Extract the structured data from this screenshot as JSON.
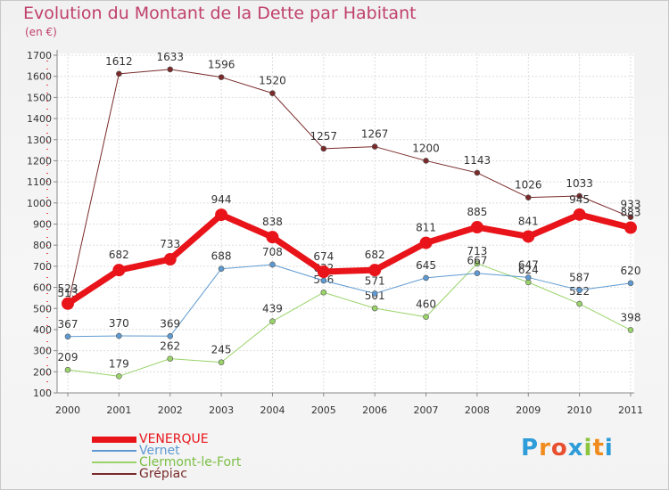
{
  "title": "Evolution du Montant de la Dette par Habitant",
  "unit": "(en €)",
  "logo": {
    "text": "Proxiti",
    "colors": [
      "#2e9cd8",
      "#f08c1e",
      "#e84f2e",
      "#2e9cd8",
      "#8cc63f",
      "#f08c1e",
      "#2e9cd8"
    ]
  },
  "chart_data": {
    "type": "line",
    "categories": [
      "2000",
      "2001",
      "2002",
      "2003",
      "2004",
      "2005",
      "2006",
      "2007",
      "2008",
      "2009",
      "2010",
      "2011"
    ],
    "yticks": [
      "100",
      "200",
      "300",
      "400",
      "500",
      "600",
      "700",
      "800",
      "900",
      "1000",
      "1100",
      "1200",
      "1300",
      "1400",
      "1500",
      "1600",
      "1700"
    ],
    "ylim": [
      100,
      1700
    ],
    "grid": true,
    "legend_position": "bottom-left",
    "series": [
      {
        "name": "Grépiac",
        "color": "#7a2a2a",
        "width": 1,
        "marker": 3,
        "values": [
          513,
          1612,
          1633,
          1596,
          1520,
          1257,
          1267,
          1200,
          1143,
          1026,
          1033,
          933
        ],
        "labels": [
          "513",
          "1612",
          "1633",
          "1596",
          "1520",
          "1257",
          "1267",
          "1200",
          "1143",
          "1026",
          "1033",
          "933"
        ]
      },
      {
        "name": "Clermont-le-Fort",
        "color": "#9ad36a",
        "width": 1,
        "marker": 3,
        "values": [
          209,
          179,
          262,
          245,
          439,
          576,
          501,
          460,
          713,
          624,
          522,
          398
        ],
        "labels": [
          "209",
          "179",
          "262",
          "245",
          "439",
          "576",
          "501",
          "460",
          "713",
          "624",
          "522",
          "398"
        ]
      },
      {
        "name": "Vernet",
        "color": "#5e9ad1",
        "width": 1,
        "marker": 3,
        "values": [
          367,
          370,
          369,
          688,
          708,
          632,
          571,
          645,
          667,
          647,
          587,
          620
        ],
        "labels": [
          "367",
          "370",
          "369",
          "688",
          "708",
          "632",
          "571",
          "645",
          "667",
          "647",
          "587",
          "620"
        ]
      },
      {
        "name": "VENERQUE",
        "color": "#e8141a",
        "width": 7,
        "marker": 7,
        "values": [
          523,
          682,
          733,
          944,
          838,
          674,
          682,
          811,
          885,
          841,
          945,
          883
        ],
        "labels": [
          "523",
          "682",
          "733",
          "944",
          "838",
          "674",
          "682",
          "811",
          "885",
          "841",
          "945",
          "883"
        ]
      }
    ],
    "legend": [
      {
        "name": "VENERQUE",
        "color": "#e8141a",
        "text_color": "#e8141a",
        "thickness": 7
      },
      {
        "name": "Vernet",
        "color": "#5e9ad1",
        "text_color": "#5e9ad1",
        "thickness": 2
      },
      {
        "name": "Clermont-le-Fort",
        "color": "#9ad36a",
        "text_color": "#7cbf45",
        "thickness": 2
      },
      {
        "name": "Grépiac",
        "color": "#7a2a2a",
        "text_color": "#7a2a2a",
        "thickness": 2
      }
    ]
  }
}
